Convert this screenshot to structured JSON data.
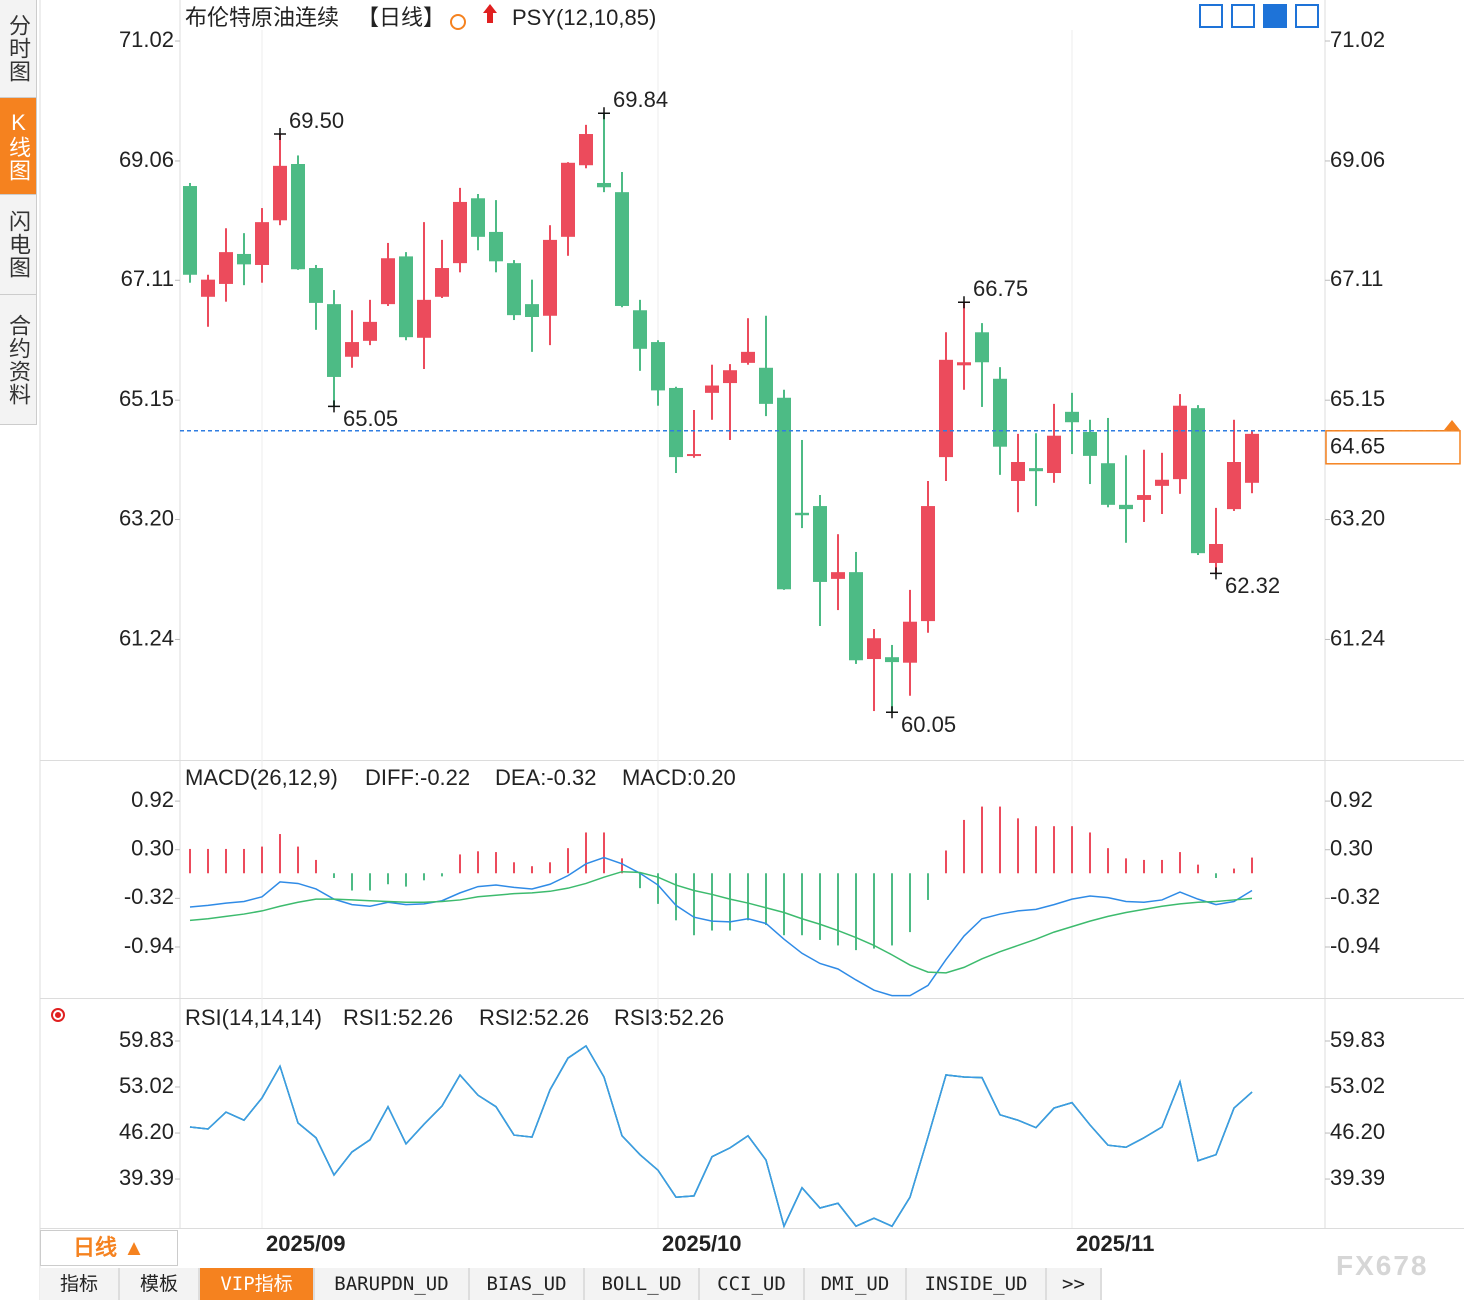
{
  "chart_data": [
    {
      "type": "candlestick",
      "title": "布伦特原油连续",
      "period": "【日线】",
      "indicator": "PSY(12,10,85)",
      "categories": [
        null,
        null,
        null,
        null,
        "2025/09",
        null,
        null,
        null,
        null,
        null,
        null,
        null,
        null,
        null,
        null,
        null,
        null,
        null,
        null,
        null,
        null,
        null,
        null,
        null,
        null,
        null,
        "2025/10",
        null,
        null,
        null,
        null,
        null,
        null,
        null,
        null,
        null,
        null,
        null,
        null,
        null,
        null,
        null,
        null,
        null,
        null,
        null,
        null,
        null,
        null,
        "2025/11",
        null,
        null,
        null,
        null,
        null,
        null,
        null,
        null,
        null,
        null
      ],
      "open": [
        68.65,
        66.84,
        67.05,
        67.54,
        67.36,
        68.09,
        69.01,
        67.31,
        66.72,
        65.86,
        66.12,
        66.72,
        67.5,
        66.17,
        66.84,
        67.39,
        68.45,
        67.9,
        67.39,
        66.72,
        66.53,
        67.82,
        68.99,
        68.7,
        68.55,
        66.62,
        66.1,
        65.35,
        64.24,
        65.27,
        65.43,
        65.76,
        65.68,
        65.19,
        63.31,
        63.42,
        62.23,
        62.34,
        60.92,
        60.95,
        60.86,
        61.54,
        64.22,
        65.72,
        66.26,
        65.5,
        63.83,
        64.04,
        63.96,
        64.96,
        64.63,
        64.12,
        63.44,
        63.52,
        63.75,
        63.86,
        65.02,
        62.49,
        63.37,
        63.8
      ],
      "high": [
        68.7,
        67.2,
        67.96,
        67.88,
        68.29,
        69.5,
        69.15,
        67.36,
        66.95,
        66.62,
        66.79,
        67.72,
        67.57,
        68.06,
        67.77,
        68.62,
        68.52,
        68.42,
        67.44,
        67.12,
        68.01,
        69.04,
        69.65,
        69.84,
        68.88,
        66.79,
        66.13,
        65.37,
        64.99,
        65.73,
        65.74,
        66.49,
        66.53,
        65.32,
        64.5,
        63.6,
        62.96,
        62.67,
        61.41,
        61.15,
        62.05,
        63.83,
        66.26,
        66.75,
        66.41,
        65.69,
        64.6,
        64.61,
        65.09,
        65.27,
        64.83,
        64.86,
        64.25,
        64.34,
        64.29,
        65.25,
        65.07,
        63.39,
        64.83,
        64.66
      ],
      "low": [
        67.07,
        66.35,
        66.76,
        67.03,
        67.07,
        68.01,
        67.28,
        66.3,
        65.05,
        65.68,
        66.05,
        66.69,
        66.13,
        65.66,
        66.82,
        67.24,
        67.6,
        67.24,
        66.46,
        65.94,
        66.05,
        67.51,
        68.94,
        68.55,
        66.67,
        65.63,
        65.06,
        63.96,
        64.21,
        64.83,
        64.5,
        65.73,
        64.89,
        62.05,
        63.06,
        61.46,
        61.72,
        60.84,
        60.07,
        60.05,
        60.32,
        61.35,
        63.83,
        65.32,
        65.04,
        63.93,
        63.32,
        63.42,
        63.8,
        64.27,
        63.78,
        63.4,
        62.82,
        63.16,
        63.29,
        63.62,
        62.62,
        62.32,
        63.34,
        63.63
      ],
      "close": [
        67.2,
        67.12,
        67.57,
        67.37,
        68.06,
        68.98,
        67.29,
        66.74,
        65.53,
        66.1,
        66.43,
        67.47,
        66.18,
        66.79,
        67.31,
        68.39,
        67.82,
        67.42,
        66.54,
        66.51,
        67.77,
        69.03,
        69.5,
        68.63,
        66.69,
        65.99,
        65.31,
        64.22,
        64.27,
        65.39,
        65.64,
        65.94,
        65.09,
        62.06,
        63.27,
        62.18,
        62.34,
        60.9,
        61.26,
        60.87,
        61.53,
        63.42,
        65.81,
        65.77,
        65.77,
        64.39,
        64.14,
        63.99,
        64.57,
        64.79,
        64.24,
        63.44,
        63.37,
        63.6,
        63.85,
        65.06,
        62.65,
        62.8,
        64.14,
        64.6
      ],
      "up_color": "#ec4b5c",
      "down_color": "#4dbb85",
      "ylim": [
        59.27,
        71.2
      ],
      "yticks": [
        71.02,
        69.06,
        67.11,
        65.15,
        {
          "value": 63.2,
          "label": "63.20"
        },
        61.24
      ],
      "last_price": 64.65,
      "last_price_color": "#2f7de1",
      "annotations": [
        {
          "candle": 5,
          "at": "high",
          "label": "69.50"
        },
        {
          "candle": 23,
          "at": "high",
          "label": "69.84"
        },
        {
          "candle": 8,
          "at": "low",
          "label": "65.05"
        },
        {
          "candle": 43,
          "at": "high",
          "label": "66.75"
        },
        {
          "candle": 39,
          "at": "low",
          "label": "60.05"
        },
        {
          "candle": 57,
          "at": "low",
          "label": "62.32"
        }
      ]
    },
    {
      "type": "macd",
      "title": "MACD(26,12,9)",
      "ylim": [
        -1.59,
        1.38
      ],
      "yticks": [
        0.92,
        {
          "value": 0.3,
          "label": "0.30"
        },
        -0.32,
        -0.94
      ],
      "series": [
        {
          "name": "DIFF:-0.22",
          "color": "#2f8be6",
          "values": [
            -0.43,
            -0.41,
            -0.38,
            -0.36,
            -0.3,
            -0.11,
            -0.13,
            -0.2,
            -0.33,
            -0.4,
            -0.42,
            -0.37,
            -0.4,
            -0.39,
            -0.35,
            -0.25,
            -0.17,
            -0.15,
            -0.18,
            -0.2,
            -0.14,
            -0.03,
            0.12,
            0.2,
            0.12,
            0.0,
            -0.15,
            -0.41,
            -0.56,
            -0.61,
            -0.62,
            -0.58,
            -0.64,
            -0.84,
            -1.02,
            -1.15,
            -1.22,
            -1.36,
            -1.49,
            -1.56,
            -1.56,
            -1.43,
            -1.1,
            -0.8,
            -0.58,
            -0.52,
            -0.48,
            -0.46,
            -0.4,
            -0.33,
            -0.29,
            -0.31,
            -0.36,
            -0.37,
            -0.34,
            -0.24,
            -0.33,
            -0.4,
            -0.36,
            -0.22
          ]
        },
        {
          "name": "DEA:-0.32",
          "color": "#3dbb6e",
          "values": [
            -0.6,
            -0.58,
            -0.55,
            -0.52,
            -0.48,
            -0.42,
            -0.37,
            -0.33,
            -0.33,
            -0.34,
            -0.35,
            -0.36,
            -0.37,
            -0.37,
            -0.36,
            -0.34,
            -0.3,
            -0.28,
            -0.26,
            -0.25,
            -0.23,
            -0.19,
            -0.13,
            -0.05,
            0.02,
            0.01,
            -0.05,
            -0.15,
            -0.22,
            -0.27,
            -0.33,
            -0.38,
            -0.44,
            -0.5,
            -0.58,
            -0.65,
            -0.73,
            -0.82,
            -0.92,
            -1.04,
            -1.17,
            -1.26,
            -1.27,
            -1.2,
            -1.09,
            -1.0,
            -0.92,
            -0.84,
            -0.75,
            -0.68,
            -0.61,
            -0.55,
            -0.5,
            -0.46,
            -0.42,
            -0.39,
            -0.37,
            -0.36,
            -0.34,
            -0.32
          ]
        },
        {
          "name": "MACD:0.20",
          "color": "#52b0f0",
          "up_color": "#ec4b5c",
          "down_color": "#4dbb85",
          "values": [
            0.31,
            0.31,
            0.31,
            0.31,
            0.34,
            0.5,
            0.34,
            0.17,
            -0.06,
            -0.22,
            -0.22,
            -0.14,
            -0.17,
            -0.09,
            -0.04,
            0.24,
            0.28,
            0.27,
            0.14,
            0.09,
            0.14,
            0.32,
            0.52,
            0.52,
            0.19,
            -0.19,
            -0.39,
            -0.6,
            -0.79,
            -0.73,
            -0.73,
            -0.6,
            -0.66,
            -0.79,
            -0.79,
            -0.85,
            -0.92,
            -0.98,
            -0.96,
            -0.92,
            -0.75,
            -0.34,
            0.29,
            0.68,
            0.85,
            0.85,
            0.7,
            0.6,
            0.6,
            0.6,
            0.52,
            0.32,
            0.19,
            0.17,
            0.17,
            0.27,
            0.11,
            -0.06,
            0.06,
            0.2
          ]
        }
      ]
    },
    {
      "type": "line",
      "title": "RSI(14,14,14)",
      "ylim": [
        32.14,
        65.9
      ],
      "yticks": [
        59.83,
        53.02,
        {
          "value": 46.2,
          "label": "46.20"
        },
        39.39
      ],
      "series": [
        {
          "name": "RSI1:52.26",
          "color": "#2f8be6",
          "values": [
            47.1,
            46.8,
            49.3,
            48.1,
            51.4,
            56.1,
            47.7,
            45.5,
            40.0,
            43.4,
            45.2,
            50.1,
            44.6,
            47.5,
            50.2,
            54.8,
            51.8,
            50.1,
            45.9,
            45.6,
            52.6,
            57.3,
            59.1,
            54.5,
            45.8,
            43.0,
            40.7,
            36.7,
            36.9,
            42.7,
            44.0,
            45.8,
            42.2,
            32.4,
            38.1,
            35.1,
            35.8,
            32.4,
            33.6,
            32.4,
            36.7,
            45.6,
            54.8,
            54.5,
            54.4,
            48.9,
            48.1,
            47.0,
            49.9,
            50.7,
            47.4,
            44.4,
            44.1,
            45.5,
            47.1,
            53.8,
            42.1,
            43.0,
            49.9,
            52.26
          ]
        },
        {
          "name": "RSI2:52.26",
          "color": "#3dbb6e",
          "values": [
            47.1,
            46.8,
            49.3,
            48.1,
            51.4,
            56.1,
            47.7,
            45.5,
            40.0,
            43.4,
            45.2,
            50.1,
            44.6,
            47.5,
            50.2,
            54.8,
            51.8,
            50.1,
            45.9,
            45.6,
            52.6,
            57.3,
            59.1,
            54.5,
            45.8,
            43.0,
            40.7,
            36.7,
            36.9,
            42.7,
            44.0,
            45.8,
            42.2,
            32.4,
            38.1,
            35.1,
            35.8,
            32.4,
            33.6,
            32.4,
            36.7,
            45.6,
            54.8,
            54.5,
            54.4,
            48.9,
            48.1,
            47.0,
            49.9,
            50.7,
            47.4,
            44.4,
            44.1,
            45.5,
            47.1,
            53.8,
            42.1,
            43.0,
            49.9,
            52.26
          ]
        },
        {
          "name": "RSI3:52.26",
          "color": "#3c9ae6",
          "values": [
            47.1,
            46.8,
            49.3,
            48.1,
            51.4,
            56.1,
            47.7,
            45.5,
            40.0,
            43.4,
            45.2,
            50.1,
            44.6,
            47.5,
            50.2,
            54.8,
            51.8,
            50.1,
            45.9,
            45.6,
            52.6,
            57.3,
            59.1,
            54.5,
            45.8,
            43.0,
            40.7,
            36.7,
            36.9,
            42.7,
            44.0,
            45.8,
            42.2,
            32.4,
            38.1,
            35.1,
            35.8,
            32.4,
            33.6,
            32.4,
            36.7,
            45.6,
            54.8,
            54.5,
            54.4,
            48.9,
            48.1,
            47.0,
            49.9,
            50.7,
            47.4,
            44.4,
            44.1,
            45.5,
            47.1,
            53.8,
            42.1,
            43.0,
            49.9,
            52.26
          ]
        }
      ]
    }
  ],
  "sidebar": [
    "分时图",
    "K线图",
    "闪电图",
    "合约资料"
  ],
  "tabs": [
    "指标",
    "模板",
    "VIP指标",
    "BARUPDN_UD",
    "BIAS_UD",
    "BOLL_UD",
    "CCI_UD",
    "DMI_UD",
    "INSIDE_UD",
    ">>"
  ],
  "period_button": "日线 ▲",
  "watermark": "FX678"
}
